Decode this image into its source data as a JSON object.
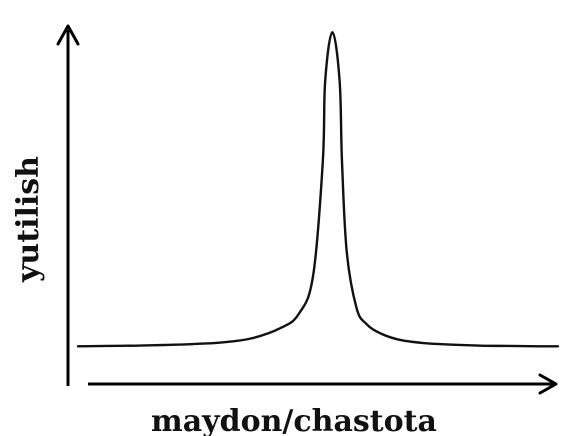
{
  "chart_data": {
    "type": "line",
    "title": "",
    "xlabel": "maydon/chastota",
    "ylabel": "yutilish",
    "x": [
      0,
      0.06,
      0.12,
      0.18,
      0.24,
      0.3,
      0.36,
      0.42,
      0.46,
      0.49,
      0.51,
      0.515,
      0.53,
      0.545,
      0.55,
      0.56,
      0.58,
      0.6,
      0.63,
      0.67,
      0.72,
      0.78,
      0.84,
      0.9,
      0.96,
      1.0
    ],
    "series": [
      {
        "values": [
          0.03,
          0.031,
          0.032,
          0.034,
          0.037,
          0.042,
          0.054,
          0.085,
          0.13,
          0.25,
          0.6,
          0.85,
          1.0,
          0.85,
          0.6,
          0.32,
          0.15,
          0.1,
          0.07,
          0.05,
          0.04,
          0.035,
          0.032,
          0.031,
          0.03,
          0.03
        ]
      }
    ],
    "xlim": [
      0,
      1
    ],
    "ylim": [
      0,
      1.05
    ],
    "grid": false
  },
  "colors": {
    "axis": "#000000",
    "curve": "#111111",
    "text": "#111111"
  }
}
